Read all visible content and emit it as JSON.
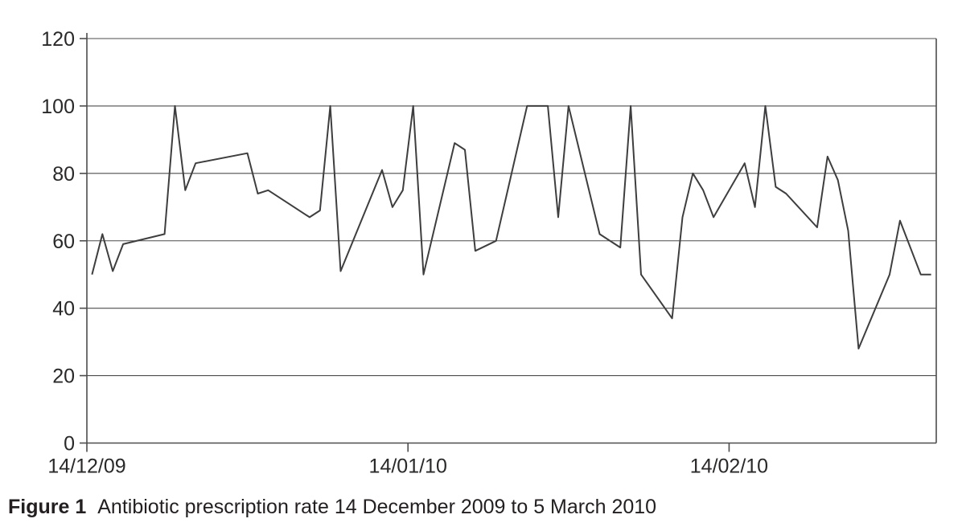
{
  "caption": {
    "figure_label": "Figure 1",
    "text": "Antibiotic prescription rate 14 December 2009 to 5 March 2010"
  },
  "chart_data": {
    "type": "line",
    "title": "Antibiotic prescription rate 14 December 2009 to 5 March 2010",
    "xlabel": "",
    "ylabel": "",
    "grid": "horizontal",
    "legend": "none",
    "x_axis": {
      "kind": "daily categories",
      "num_categories": 82,
      "start_label": "14/12/09",
      "end_date_implied": "05/03/10",
      "ticks": [
        {
          "label": "14/12/09",
          "day": 0
        },
        {
          "label": "14/01/10",
          "day": 31
        },
        {
          "label": "14/02/10",
          "day": 62
        }
      ]
    },
    "y_axis": {
      "min": 0,
      "max": 120,
      "ticks": [
        0,
        20,
        40,
        60,
        80,
        100,
        120
      ]
    },
    "series": [
      {
        "name": "Antibiotic prescription rate (%)",
        "points_format": "[day_offset_from_14_Dec_2009, value]",
        "points": [
          [
            0,
            50
          ],
          [
            1,
            62
          ],
          [
            2,
            51
          ],
          [
            3,
            59
          ],
          [
            7,
            62
          ],
          [
            8,
            100
          ],
          [
            9,
            75
          ],
          [
            10,
            83
          ],
          [
            15,
            86
          ],
          [
            16,
            74
          ],
          [
            17,
            75
          ],
          [
            19,
            71
          ],
          [
            21,
            67
          ],
          [
            22,
            69
          ],
          [
            23,
            100
          ],
          [
            24,
            51
          ],
          [
            28,
            81
          ],
          [
            29,
            70
          ],
          [
            30,
            75
          ],
          [
            31,
            100
          ],
          [
            32,
            50
          ],
          [
            35,
            89
          ],
          [
            36,
            87
          ],
          [
            37,
            57
          ],
          [
            39,
            60
          ],
          [
            42,
            100
          ],
          [
            44,
            100
          ],
          [
            45,
            67
          ],
          [
            46,
            100
          ],
          [
            49,
            62
          ],
          [
            51,
            58
          ],
          [
            52,
            100
          ],
          [
            53,
            50
          ],
          [
            56,
            37
          ],
          [
            57,
            67
          ],
          [
            58,
            80
          ],
          [
            59,
            75
          ],
          [
            60,
            67
          ],
          [
            63,
            83
          ],
          [
            64,
            70
          ],
          [
            65,
            100
          ],
          [
            66,
            76
          ],
          [
            67,
            74
          ],
          [
            70,
            64
          ],
          [
            71,
            85
          ],
          [
            72,
            78
          ],
          [
            73,
            63
          ],
          [
            74,
            28
          ],
          [
            77,
            50
          ],
          [
            78,
            66
          ],
          [
            80,
            50
          ],
          [
            81,
            50
          ]
        ]
      }
    ],
    "colors": {
      "line": "#3e3e40",
      "grid": "#4d4d4f",
      "text": "#2b2829"
    }
  }
}
